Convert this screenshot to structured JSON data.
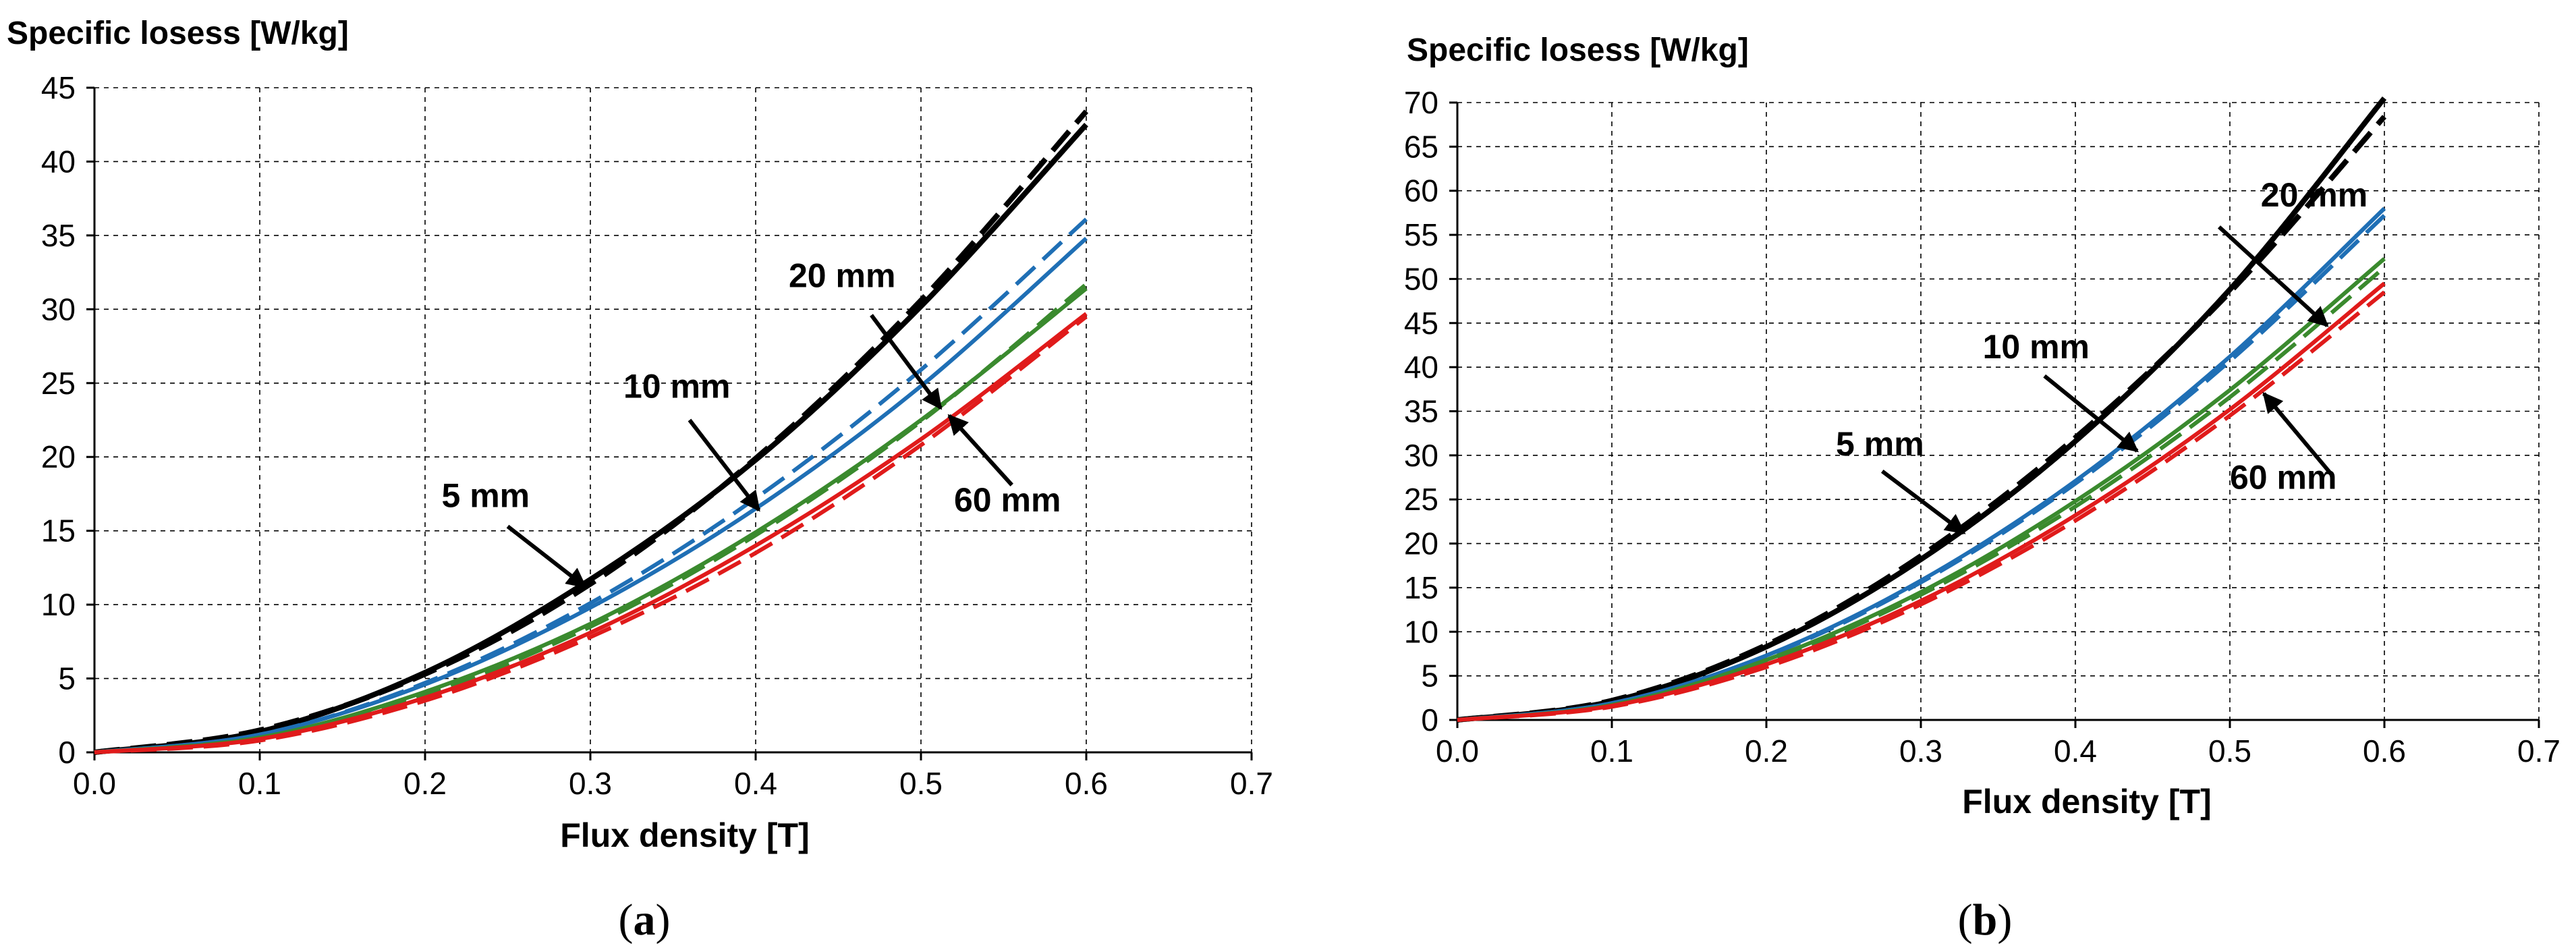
{
  "chart_data": [
    {
      "type": "line",
      "panel": "a",
      "caption_letter": "a",
      "ylabel": "Specific losess [W/kg]",
      "xlabel": "Flux density [T]",
      "xlim": [
        0,
        0.7
      ],
      "ylim": [
        0,
        45
      ],
      "xticks": [
        "0.0",
        "0.1",
        "0.2",
        "0.3",
        "0.4",
        "0.5",
        "0.6",
        "0.7"
      ],
      "yticks": [
        "0",
        "5",
        "10",
        "15",
        "20",
        "25",
        "30",
        "35",
        "40",
        "45"
      ],
      "grid": true,
      "x": [
        0.0,
        0.1,
        0.2,
        0.3,
        0.4,
        0.5,
        0.6
      ],
      "series": [
        {
          "name": "5 mm",
          "style": "solid",
          "color": "#000000",
          "values": [
            0,
            1.4,
            5.4,
            11.7,
            19.8,
            30.2,
            42.5
          ]
        },
        {
          "name": "5 mm",
          "style": "dashed",
          "color": "#000000",
          "values": [
            0,
            1.5,
            5.3,
            11.4,
            19.9,
            30.6,
            43.4
          ]
        },
        {
          "name": "10 mm",
          "style": "solid",
          "color": "#1f6fb5",
          "values": [
            0,
            1.2,
            4.6,
            9.8,
            16.5,
            24.8,
            34.8
          ]
        },
        {
          "name": "10 mm",
          "style": "dashed",
          "color": "#1f6fb5",
          "values": [
            0,
            1.2,
            4.7,
            10.1,
            17.2,
            25.9,
            36.1
          ]
        },
        {
          "name": "20 mm",
          "style": "solid",
          "color": "#3a8a2e",
          "values": [
            0,
            1.0,
            4.1,
            8.7,
            14.9,
            22.5,
            31.4
          ]
        },
        {
          "name": "20 mm",
          "style": "dashed",
          "color": "#3a8a2e",
          "values": [
            0,
            1.0,
            3.9,
            8.5,
            14.7,
            22.4,
            31.7
          ]
        },
        {
          "name": "60 mm",
          "style": "solid",
          "color": "#e01b1b",
          "values": [
            0,
            0.9,
            3.7,
            8.1,
            14.0,
            21.2,
            29.7
          ]
        },
        {
          "name": "60 mm",
          "style": "dashed",
          "color": "#e01b1b",
          "values": [
            0,
            0.8,
            3.5,
            7.8,
            13.5,
            20.8,
            29.5
          ]
        }
      ],
      "annotations": [
        {
          "text": "5 mm",
          "label_at": [
            0.21,
            16.6
          ],
          "arrow_from": [
            0.25,
            15.3
          ],
          "arrow_to": [
            0.297,
            11.2
          ]
        },
        {
          "text": "10 mm",
          "label_at": [
            0.32,
            24.0
          ],
          "arrow_from": [
            0.36,
            22.5
          ],
          "arrow_to": [
            0.402,
            16.4
          ]
        },
        {
          "text": "20 mm",
          "label_at": [
            0.42,
            31.5
          ],
          "arrow_from": [
            0.47,
            29.6
          ],
          "arrow_to": [
            0.512,
            23.3
          ]
        },
        {
          "text": "60 mm",
          "label_at": [
            0.52,
            16.3
          ],
          "arrow_from": [
            0.555,
            18.1
          ],
          "arrow_to": [
            0.517,
            22.8
          ]
        }
      ]
    },
    {
      "type": "line",
      "panel": "b",
      "caption_letter": "b",
      "ylabel": "Specific losess [W/kg]",
      "xlabel": "Flux density [T]",
      "xlim": [
        0,
        0.7
      ],
      "ylim": [
        0,
        70
      ],
      "xticks": [
        "0.0",
        "0.1",
        "0.2",
        "0.3",
        "0.4",
        "0.5",
        "0.6",
        "0.7"
      ],
      "yticks": [
        "0",
        "5",
        "10",
        "15",
        "20",
        "25",
        "30",
        "35",
        "40",
        "45",
        "50",
        "55",
        "60",
        "65",
        "70"
      ],
      "grid": true,
      "x": [
        0.0,
        0.1,
        0.2,
        0.3,
        0.4,
        0.5,
        0.6
      ],
      "series": [
        {
          "name": "5 mm",
          "style": "solid",
          "color": "#000000",
          "values": [
            0,
            2.1,
            8.3,
            18.2,
            31.6,
            48.8,
            70.5
          ]
        },
        {
          "name": "5 mm",
          "style": "dashed",
          "color": "#000000",
          "values": [
            0,
            2.2,
            8.5,
            18.6,
            32.0,
            48.5,
            68.4
          ]
        },
        {
          "name": "10 mm",
          "style": "solid",
          "color": "#1f6fb5",
          "values": [
            0,
            1.9,
            7.3,
            15.8,
            27.1,
            41.2,
            58.0
          ]
        },
        {
          "name": "10 mm",
          "style": "dashed",
          "color": "#1f6fb5",
          "values": [
            0,
            1.9,
            7.2,
            15.6,
            26.8,
            40.7,
            57.2
          ]
        },
        {
          "name": "20 mm",
          "style": "solid",
          "color": "#3a8a2e",
          "values": [
            0,
            1.7,
            6.8,
            14.5,
            24.8,
            37.4,
            52.3
          ]
        },
        {
          "name": "20 mm",
          "style": "dashed",
          "color": "#3a8a2e",
          "values": [
            0,
            1.7,
            6.6,
            14.2,
            24.2,
            36.6,
            51.3
          ]
        },
        {
          "name": "60 mm",
          "style": "solid",
          "color": "#e01b1b",
          "values": [
            0,
            1.6,
            6.3,
            13.5,
            23.2,
            35.2,
            49.5
          ]
        },
        {
          "name": "60 mm",
          "style": "dashed",
          "color": "#e01b1b",
          "values": [
            0,
            1.5,
            6.0,
            13.1,
            22.6,
            34.5,
            48.5
          ]
        }
      ],
      "annotations": [
        {
          "text": "5 mm",
          "label_at": [
            0.245,
            30.0
          ],
          "arrow_from": [
            0.275,
            28.2
          ],
          "arrow_to": [
            0.328,
            21.2
          ]
        },
        {
          "text": "10 mm",
          "label_at": [
            0.34,
            41.0
          ],
          "arrow_from": [
            0.38,
            39.0
          ],
          "arrow_to": [
            0.44,
            30.5
          ]
        },
        {
          "text": "20 mm",
          "label_at": [
            0.52,
            58.2
          ],
          "arrow_from": [
            0.493,
            55.9
          ],
          "arrow_to": [
            0.563,
            44.7
          ]
        },
        {
          "text": "60 mm",
          "label_at": [
            0.5,
            26.2
          ],
          "arrow_from": [
            0.565,
            28.0
          ],
          "arrow_to": [
            0.522,
            37.0
          ]
        }
      ]
    }
  ]
}
